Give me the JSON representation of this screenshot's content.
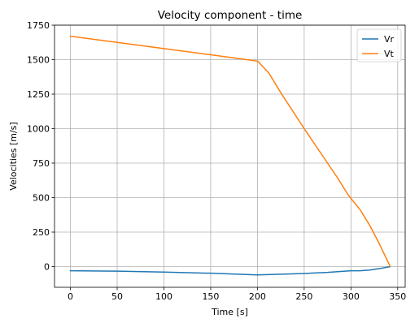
{
  "chart_data": {
    "type": "line",
    "title": "Velocity component - time",
    "xlabel": "Time [s]",
    "ylabel": "Velocities [m/s]",
    "xlim": [
      -17,
      358
    ],
    "ylim": [
      -150,
      1750
    ],
    "xticks": [
      0,
      50,
      100,
      150,
      200,
      250,
      300,
      350
    ],
    "yticks": [
      0,
      250,
      500,
      750,
      1000,
      1250,
      1500,
      1750
    ],
    "grid": true,
    "legend_position": "top-right",
    "series": [
      {
        "name": "Vr",
        "color": "#1f77b4",
        "x": [
          0,
          50,
          100,
          150,
          200,
          225,
          250,
          275,
          300,
          310,
          320,
          330,
          342
        ],
        "y": [
          -30,
          -33,
          -40,
          -48,
          -60,
          -55,
          -50,
          -42,
          -30,
          -30,
          -25,
          -15,
          0
        ]
      },
      {
        "name": "Vt",
        "color": "#ff7f0e",
        "x": [
          0,
          50,
          100,
          150,
          200,
          205,
          212,
          225,
          250,
          275,
          285,
          297,
          310,
          320,
          330,
          342
        ],
        "y": [
          1670,
          1625,
          1580,
          1535,
          1490,
          1455,
          1405,
          1260,
          1000,
          750,
          650,
          520,
          410,
          300,
          170,
          0
        ]
      }
    ]
  }
}
